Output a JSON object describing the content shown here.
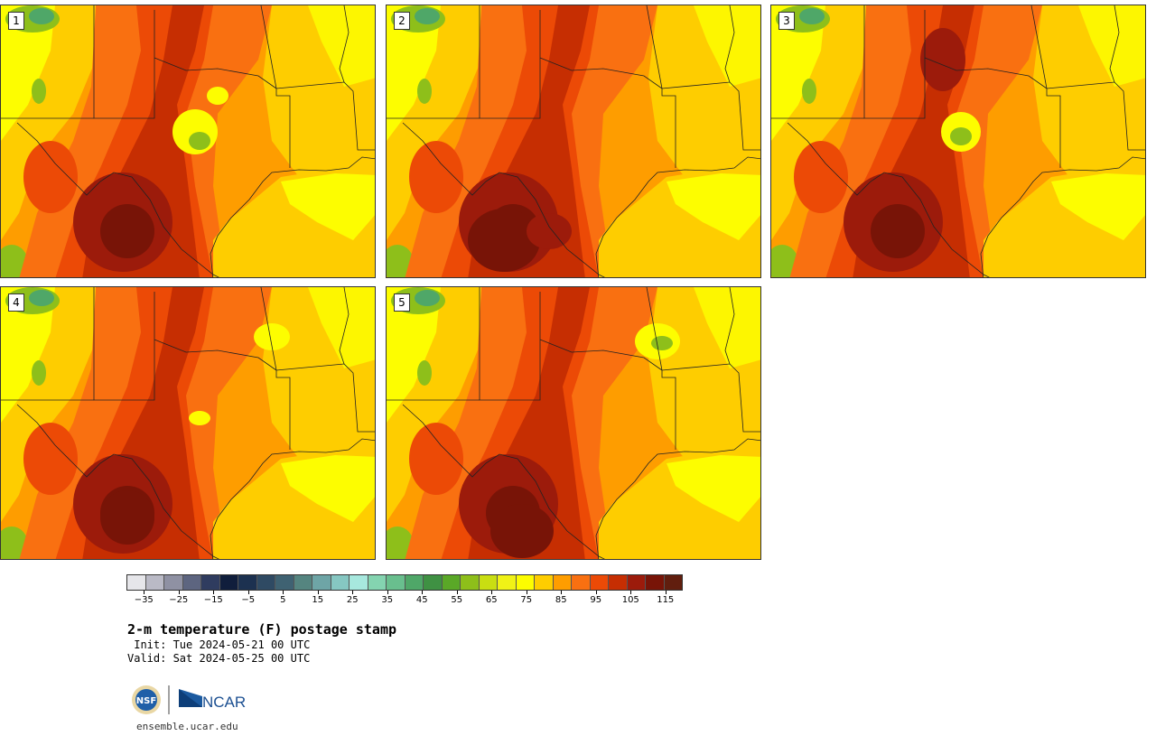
{
  "panels": [
    {
      "label": "1",
      "variant": 0
    },
    {
      "label": "2",
      "variant": 1
    },
    {
      "label": "3",
      "variant": 2
    },
    {
      "label": "4",
      "variant": 3
    },
    {
      "label": "5",
      "variant": 4
    }
  ],
  "colorbar": {
    "colors": [
      "#e6e6ea",
      "#babac6",
      "#8f91a3",
      "#5d6580",
      "#2f3c5f",
      "#101e3c",
      "#1c3150",
      "#2f4a63",
      "#3f6272",
      "#558580",
      "#6ea5a6",
      "#86c7c2",
      "#a7e8de",
      "#84d4b0",
      "#69bf8e",
      "#4fa768",
      "#3f9143",
      "#5aa827",
      "#8ebf1a",
      "#c9de12",
      "#f0f216",
      "#fdfd00",
      "#fecd00",
      "#fe9d00",
      "#f97011",
      "#ec4a06",
      "#c62e02",
      "#9c1b0b",
      "#781407",
      "#611e0e"
    ],
    "ticks": [
      "−35",
      "−25",
      "−15",
      "−5",
      "5",
      "15",
      "25",
      "35",
      "45",
      "55",
      "65",
      "75",
      "85",
      "95",
      "105",
      "115"
    ],
    "tick_values": [
      -35,
      -25,
      -15,
      -5,
      5,
      15,
      25,
      35,
      45,
      55,
      65,
      75,
      85,
      95,
      105,
      115
    ],
    "min": -40,
    "max": 120
  },
  "title": "2-m temperature (F) postage stamp",
  "init_line": " Init: Tue 2024-05-21 00 UTC",
  "valid_line": "Valid: Sat 2024-05-25 00 UTC",
  "logos": {
    "nsf": "NSF",
    "ncar": "NCAR"
  },
  "url": "ensemble.ucar.edu",
  "map_colors": {
    "yellow": "#fdfd00",
    "gold": "#fecd00",
    "orange": "#fe9d00",
    "darkorange": "#f97011",
    "red": "#ec4a06",
    "darkred": "#c62e02",
    "maroon": "#9c1b0b",
    "brown": "#781407",
    "green": "#4fa768",
    "lightgreen": "#8ebf1a"
  }
}
